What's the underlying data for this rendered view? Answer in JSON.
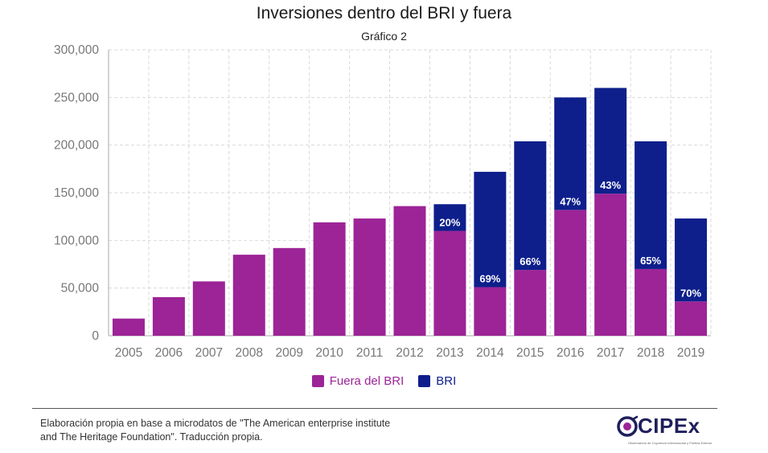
{
  "header": {
    "title": "Inversiones dentro del BRI y fuera",
    "subtitle": "Gráfico 2"
  },
  "colors": {
    "fuera": "#9c2496",
    "bri": "#0e1f8c",
    "grid": "#d9d9d9",
    "axis": "#aaaaaa"
  },
  "chart_data": {
    "type": "bar",
    "stacked": true,
    "title": "Inversiones dentro del BRI y fuera",
    "subtitle": "Gráfico 2",
    "categories": [
      "2005",
      "2006",
      "2007",
      "2008",
      "2009",
      "2010",
      "2011",
      "2012",
      "2013",
      "2014",
      "2015",
      "2016",
      "2017",
      "2018",
      "2019"
    ],
    "series": [
      {
        "name": "Fuera del BRI",
        "values": [
          18000,
          40500,
          57000,
          85000,
          92000,
          119000,
          123000,
          136000,
          110000,
          51000,
          69000,
          132000,
          149000,
          70000,
          36000
        ]
      },
      {
        "name": "BRI",
        "values": [
          0,
          0,
          0,
          0,
          0,
          0,
          0,
          0,
          28000,
          121000,
          135000,
          118000,
          111000,
          134000,
          87000
        ]
      }
    ],
    "data_labels": [
      "",
      "",
      "",
      "",
      "",
      "",
      "",
      "",
      "20%",
      "69%",
      "66%",
      "47%",
      "43%",
      "65%",
      "70%"
    ],
    "ylim": [
      0,
      300000
    ],
    "yticks": [
      0,
      50000,
      100000,
      150000,
      200000,
      250000,
      300000
    ],
    "ytick_labels": [
      "0",
      "50,000",
      "100,000",
      "150,000",
      "200,000",
      "250,000",
      "300,000"
    ],
    "xlabel": "",
    "ylabel": "",
    "grid": true,
    "legend_position": "bottom-center"
  },
  "legend": {
    "fuera_label": "Fuera del BRI",
    "bri_label": "BRI"
  },
  "footer": {
    "source_line1": "Elaboración propia en base a microdatos de \"The American enterprise institute",
    "source_line2": "and The Heritage Foundation\". Traducción propia.",
    "logo_text": "CIPEx",
    "logo_tagline": "Observatorio de Coyuntura Internacional y Política Exterior"
  }
}
